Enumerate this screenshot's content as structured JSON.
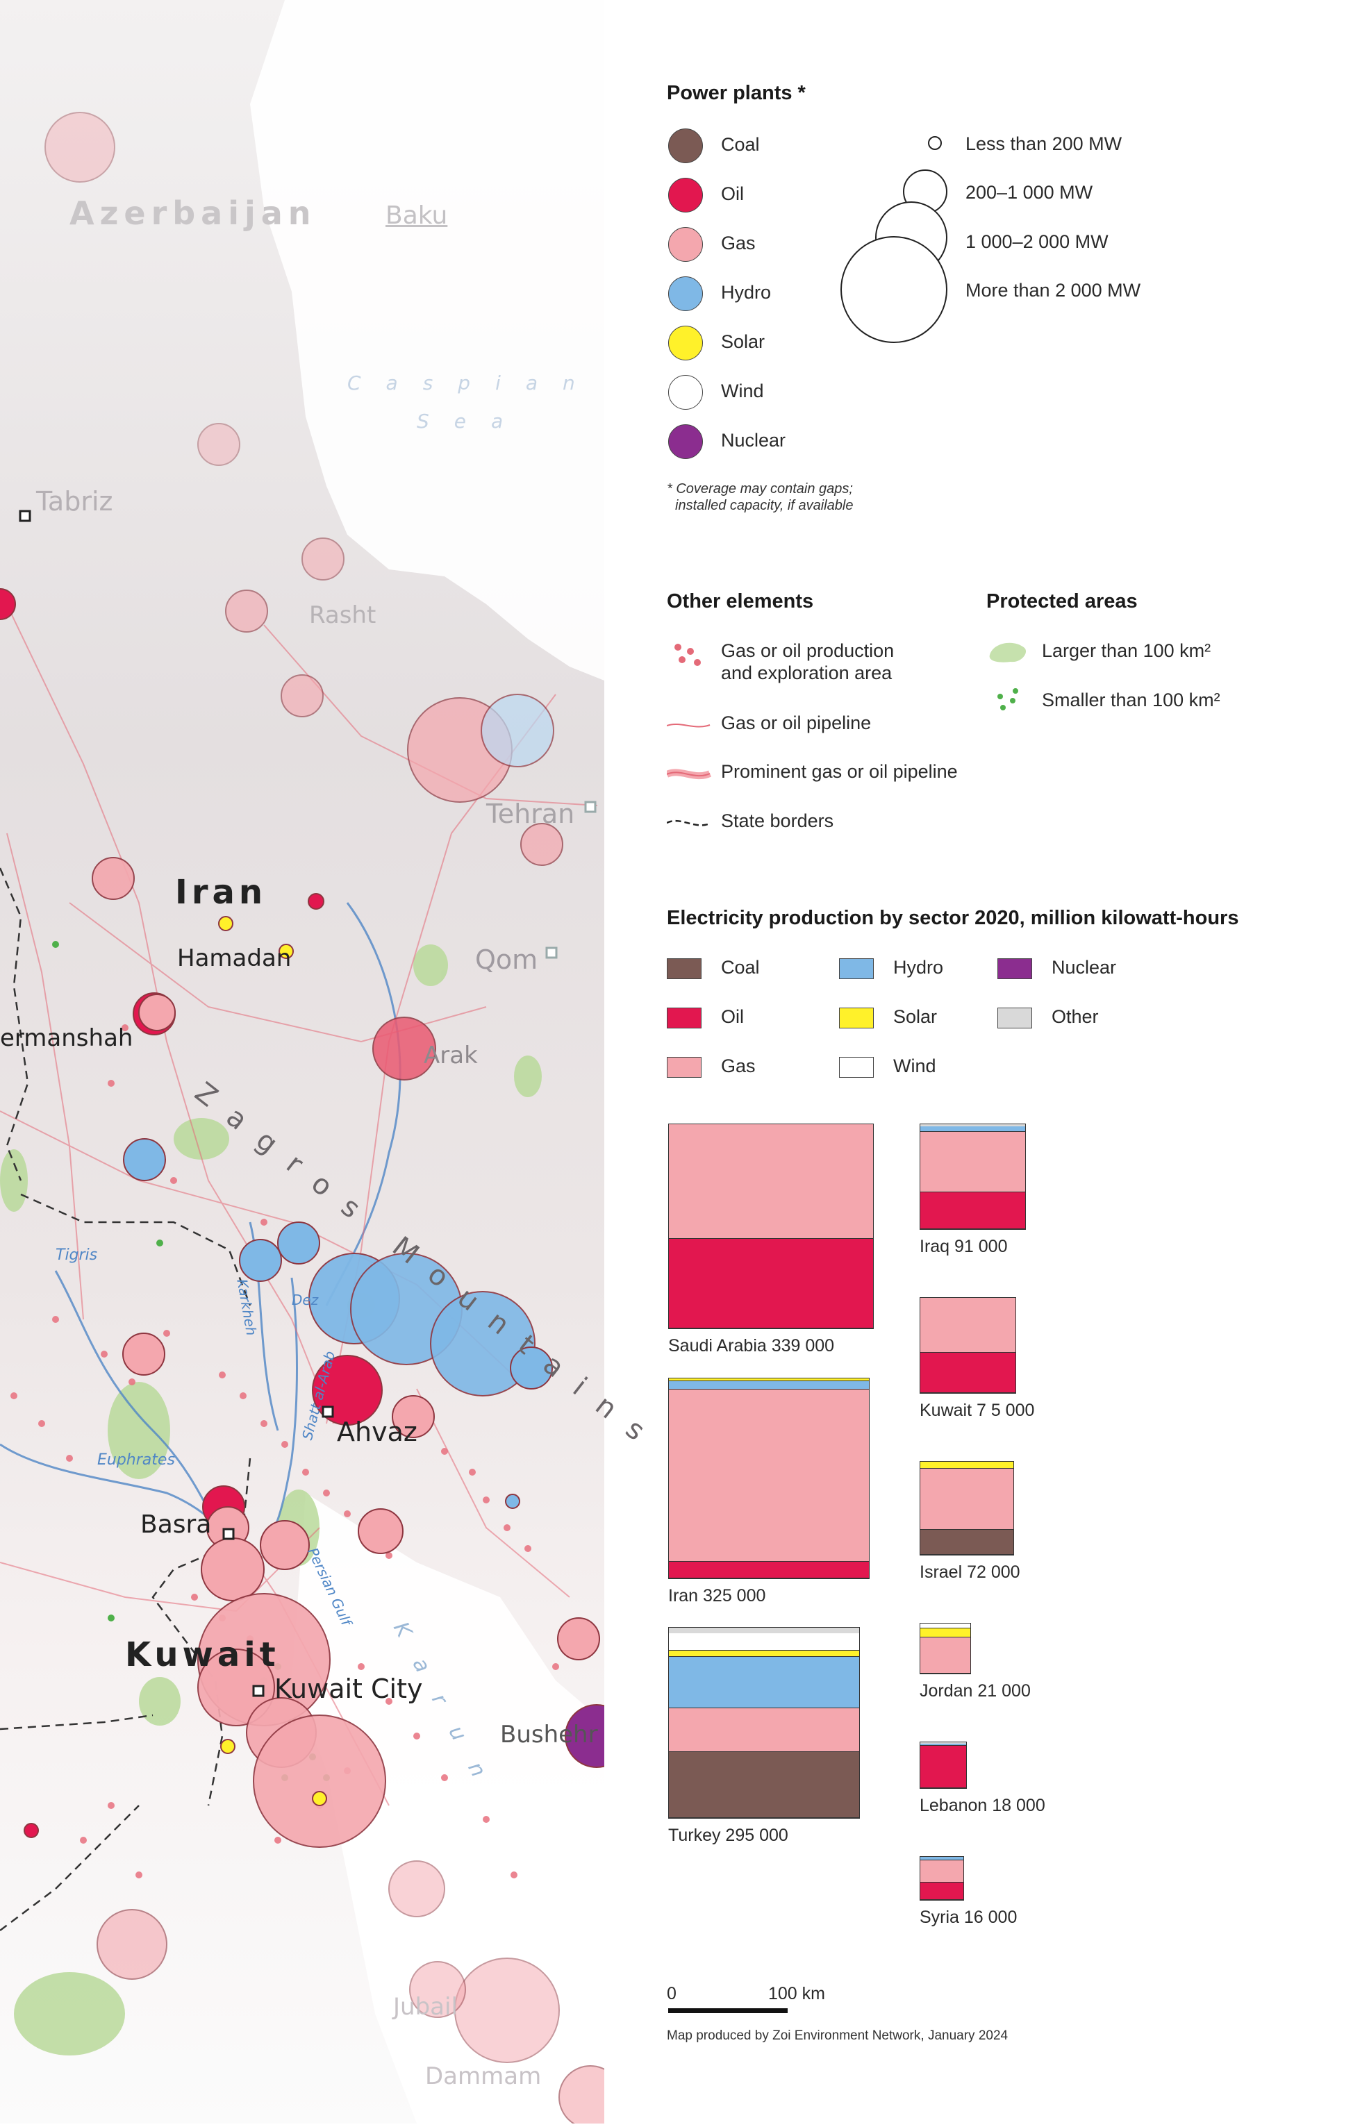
{
  "colors": {
    "coal": "#7b5a54",
    "oil": "#e2174f",
    "gas": "#f4a7ae",
    "hydro": "#7fb8e6",
    "solar": "#fff12a",
    "wind": "#ffffff",
    "nuclear": "#8b2d8f",
    "other": "#d9d9d9"
  },
  "power_plants": {
    "title": "Power plants *",
    "types": [
      {
        "label": "Coal",
        "color_key": "coal"
      },
      {
        "label": "Oil",
        "color_key": "oil"
      },
      {
        "label": "Gas",
        "color_key": "gas"
      },
      {
        "label": "Hydro",
        "color_key": "hydro"
      },
      {
        "label": "Solar",
        "color_key": "solar"
      },
      {
        "label": "Wind",
        "color_key": "wind"
      },
      {
        "label": "Nuclear",
        "color_key": "nuclear"
      }
    ],
    "sizes": [
      {
        "label": "Less than 200 MW"
      },
      {
        "label": "200–1 000 MW"
      },
      {
        "label": "1 000–2 000 MW"
      },
      {
        "label": "More than 2 000 MW"
      }
    ],
    "footnote_line1": "* Coverage may contain gaps;",
    "footnote_line2": "installed capacity, if available"
  },
  "other_elements": {
    "title": "Other elements",
    "items": [
      {
        "label_line1": "Gas or oil production",
        "label_line2": "and exploration area",
        "icon": "dots-icon"
      },
      {
        "label_line1": "Gas or oil pipeline",
        "icon": "pipeline-icon"
      },
      {
        "label_line1": "Prominent gas or oil pipeline",
        "icon": "prominent-pipeline-icon"
      },
      {
        "label_line1": "State borders",
        "icon": "border-icon"
      }
    ]
  },
  "protected_areas": {
    "title": "Protected areas",
    "items": [
      {
        "label": "Larger than 100 km²"
      },
      {
        "label": "Smaller than 100 km²"
      }
    ]
  },
  "electricity": {
    "title": "Electricity production by sector 2020, million kilowatt-hours",
    "sector_legend": [
      {
        "label": "Coal",
        "color_key": "coal"
      },
      {
        "label": "Hydro",
        "color_key": "hydro"
      },
      {
        "label": "Nuclear",
        "color_key": "nuclear"
      },
      {
        "label": "Oil",
        "color_key": "oil"
      },
      {
        "label": "Solar",
        "color_key": "solar"
      },
      {
        "label": "Other",
        "color_key": "other"
      },
      {
        "label": "Gas",
        "color_key": "gas"
      },
      {
        "label": "Wind",
        "color_key": "wind"
      }
    ],
    "countries": [
      {
        "label": "Saudi Arabia  339 000",
        "total": 339000,
        "shares": {
          "oil": 0.44,
          "gas": 0.56
        }
      },
      {
        "label": "Iran  325 000",
        "total": 325000,
        "shares": {
          "oil": 0.08,
          "gas": 0.87,
          "hydro": 0.04,
          "solar": 0.01
        }
      },
      {
        "label": "Turkey  295 000",
        "total": 295000,
        "shares": {
          "coal": 0.35,
          "gas": 0.23,
          "hydro": 0.27,
          "solar": 0.03,
          "wind": 0.09,
          "other": 0.03
        }
      },
      {
        "label": "Iraq  91 000",
        "total": 91000,
        "shares": {
          "oil": 0.35,
          "gas": 0.58,
          "hydro": 0.05,
          "other": 0.02
        }
      },
      {
        "label": "Kuwait 7 5 000",
        "total": 75000,
        "shares": {
          "oil": 0.42,
          "gas": 0.58
        }
      },
      {
        "label": "Israel  72 000",
        "total": 72000,
        "shares": {
          "coal": 0.27,
          "gas": 0.66,
          "solar": 0.07
        }
      },
      {
        "label": "Jordan  21 000",
        "total": 21000,
        "shares": {
          "gas": 0.74,
          "solar": 0.17,
          "wind": 0.09
        }
      },
      {
        "label": "Lebanon  18 000",
        "total": 18000,
        "shares": {
          "oil": 0.94,
          "hydro": 0.03,
          "other": 0.03
        }
      },
      {
        "label": "Syria  16 000",
        "total": 16000,
        "shares": {
          "oil": 0.4,
          "gas": 0.53,
          "hydro": 0.07
        }
      }
    ]
  },
  "scale_bar": {
    "left": "0",
    "right": "100 km"
  },
  "credit": "Map produced by Zoi Environment Network, January 2024",
  "map": {
    "country_labels": [
      "Azerbaijan",
      "Iran",
      "Kuwait"
    ],
    "city_labels": [
      "Baku",
      "Tabriz",
      "Rasht",
      "Tehran",
      "Qom",
      "Hamadan",
      "ermanshah",
      "Arak",
      "Ahvaz",
      "Basra",
      "Kuwait City",
      "Bushehr",
      "Jubail",
      "Dammam"
    ],
    "water_labels": [
      "Caspian",
      "Sea",
      "Tigris",
      "Euphrates",
      "Karun",
      "Persian Gulf",
      "Shatt al-Arab",
      "Karkheh",
      "Dez"
    ],
    "range_labels": [
      "Zagros Mountains"
    ]
  }
}
